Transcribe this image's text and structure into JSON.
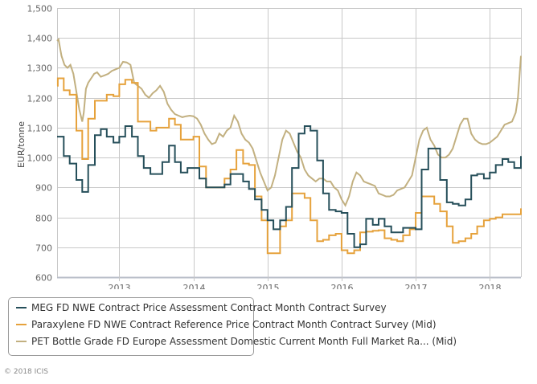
{
  "chart_data": {
    "type": "line",
    "title": "",
    "xlabel": "",
    "ylabel": "EUR/tonne",
    "ylim": [
      600,
      1500
    ],
    "yticks": [
      600,
      700,
      800,
      900,
      1000,
      1100,
      1200,
      1300,
      1400,
      1500
    ],
    "ytick_labels": [
      "600",
      "700",
      "800",
      "900",
      "1,000",
      "1,100",
      "1,200",
      "1,300",
      "1,400",
      "1,500"
    ],
    "xlim": [
      2012.16,
      2018.42
    ],
    "xticks": [
      2013,
      2014,
      2015,
      2016,
      2017,
      2018
    ],
    "xtick_labels": [
      "2013",
      "2014",
      "2015",
      "2016",
      "2017",
      "2018"
    ],
    "grid": true,
    "legend_position": "bottom",
    "series": [
      {
        "name": "MEG FD NWE Contract Price Assessment Contract Month Contract Survey",
        "color": "#264f5a",
        "step": true,
        "x": [
          2012.16,
          2012.25,
          2012.33,
          2012.42,
          2012.5,
          2012.58,
          2012.67,
          2012.75,
          2012.83,
          2012.92,
          2013.0,
          2013.08,
          2013.17,
          2013.25,
          2013.33,
          2013.42,
          2013.5,
          2013.58,
          2013.67,
          2013.75,
          2013.83,
          2013.92,
          2014.0,
          2014.08,
          2014.17,
          2014.25,
          2014.33,
          2014.42,
          2014.5,
          2014.58,
          2014.67,
          2014.75,
          2014.83,
          2014.92,
          2015.0,
          2015.08,
          2015.17,
          2015.25,
          2015.33,
          2015.42,
          2015.5,
          2015.58,
          2015.67,
          2015.75,
          2015.83,
          2015.92,
          2016.0,
          2016.08,
          2016.17,
          2016.25,
          2016.33,
          2016.42,
          2016.5,
          2016.58,
          2016.67,
          2016.75,
          2016.83,
          2016.92,
          2017.0,
          2017.08,
          2017.17,
          2017.25,
          2017.33,
          2017.42,
          2017.5,
          2017.58,
          2017.67,
          2017.75,
          2017.83,
          2017.92,
          2018.0,
          2018.08,
          2018.17,
          2018.25,
          2018.33,
          2018.42
        ],
        "values": [
          1070,
          1005,
          980,
          925,
          885,
          975,
          1075,
          1095,
          1070,
          1050,
          1070,
          1105,
          1070,
          1005,
          965,
          945,
          945,
          985,
          1040,
          985,
          950,
          965,
          965,
          930,
          900,
          900,
          900,
          910,
          945,
          945,
          920,
          895,
          860,
          825,
          790,
          760,
          790,
          835,
          965,
          1080,
          1105,
          1090,
          990,
          880,
          825,
          820,
          815,
          745,
          700,
          710,
          795,
          775,
          795,
          770,
          750,
          750,
          765,
          765,
          760,
          960,
          1030,
          1030,
          925,
          850,
          845,
          840,
          860,
          940,
          945,
          930,
          950,
          975,
          995,
          985,
          965,
          1005
        ]
      },
      {
        "name": "Paraxylene FD NWE Contract Reference Price Contract Month Contract Survey (Mid)",
        "color": "#e6a23c",
        "step": true,
        "x": [
          2012.16,
          2012.17,
          2012.25,
          2012.33,
          2012.42,
          2012.5,
          2012.58,
          2012.67,
          2012.75,
          2012.83,
          2012.92,
          2013.0,
          2013.08,
          2013.17,
          2013.25,
          2013.33,
          2013.42,
          2013.5,
          2013.58,
          2013.67,
          2013.75,
          2013.83,
          2013.92,
          2014.0,
          2014.08,
          2014.17,
          2014.25,
          2014.33,
          2014.42,
          2014.5,
          2014.58,
          2014.67,
          2014.75,
          2014.83,
          2014.92,
          2015.0,
          2015.08,
          2015.17,
          2015.25,
          2015.33,
          2015.42,
          2015.5,
          2015.58,
          2015.67,
          2015.75,
          2015.83,
          2015.92,
          2016.0,
          2016.08,
          2016.17,
          2016.25,
          2016.33,
          2016.42,
          2016.5,
          2016.58,
          2016.67,
          2016.75,
          2016.83,
          2016.92,
          2017.0,
          2017.08,
          2017.17,
          2017.25,
          2017.33,
          2017.42,
          2017.5,
          2017.58,
          2017.67,
          2017.75,
          2017.83,
          2017.92,
          2018.0,
          2018.08,
          2018.17,
          2018.25,
          2018.33,
          2018.42
        ],
        "values": [
          1240,
          1265,
          1225,
          1210,
          1090,
          995,
          1130,
          1190,
          1190,
          1210,
          1205,
          1245,
          1260,
          1250,
          1120,
          1120,
          1090,
          1100,
          1100,
          1130,
          1110,
          1060,
          1060,
          1070,
          970,
          900,
          900,
          900,
          930,
          960,
          1025,
          980,
          975,
          870,
          790,
          680,
          680,
          770,
          790,
          880,
          880,
          865,
          790,
          720,
          725,
          740,
          745,
          690,
          680,
          690,
          750,
          752,
          755,
          757,
          730,
          725,
          720,
          740,
          760,
          815,
          870,
          870,
          845,
          820,
          770,
          715,
          720,
          730,
          745,
          770,
          790,
          795,
          800,
          810,
          810,
          810,
          830
        ]
      },
      {
        "name": "PET Bottle Grade FD Europe Assessment Domestic Current Month Full Market Ra... (Mid)",
        "color": "#c2b080",
        "step": false,
        "x": [
          2012.16,
          2012.18,
          2012.22,
          2012.26,
          2012.3,
          2012.34,
          2012.38,
          2012.42,
          2012.46,
          2012.5,
          2012.52,
          2012.55,
          2012.58,
          2012.62,
          2012.66,
          2012.7,
          2012.75,
          2012.8,
          2012.85,
          2012.9,
          2012.95,
          2013.0,
          2013.05,
          2013.1,
          2013.15,
          2013.2,
          2013.25,
          2013.3,
          2013.35,
          2013.4,
          2013.45,
          2013.5,
          2013.55,
          2013.6,
          2013.65,
          2013.7,
          2013.75,
          2013.8,
          2013.85,
          2013.9,
          2013.95,
          2014.0,
          2014.05,
          2014.1,
          2014.15,
          2014.2,
          2014.25,
          2014.3,
          2014.35,
          2014.4,
          2014.45,
          2014.5,
          2014.55,
          2014.6,
          2014.65,
          2014.7,
          2014.75,
          2014.8,
          2014.85,
          2014.9,
          2014.95,
          2015.0,
          2015.05,
          2015.1,
          2015.15,
          2015.2,
          2015.25,
          2015.3,
          2015.35,
          2015.4,
          2015.45,
          2015.5,
          2015.55,
          2015.6,
          2015.65,
          2015.7,
          2015.75,
          2015.8,
          2015.85,
          2015.9,
          2015.95,
          2016.0,
          2016.05,
          2016.1,
          2016.15,
          2016.2,
          2016.25,
          2016.3,
          2016.35,
          2016.4,
          2016.45,
          2016.5,
          2016.55,
          2016.6,
          2016.65,
          2016.7,
          2016.75,
          2016.8,
          2016.85,
          2016.9,
          2016.95,
          2017.0,
          2017.05,
          2017.1,
          2017.15,
          2017.2,
          2017.25,
          2017.3,
          2017.35,
          2017.4,
          2017.45,
          2017.5,
          2017.55,
          2017.6,
          2017.65,
          2017.7,
          2017.75,
          2017.8,
          2017.85,
          2017.9,
          2017.95,
          2018.0,
          2018.05,
          2018.1,
          2018.15,
          2018.2,
          2018.25,
          2018.3,
          2018.35,
          2018.38,
          2018.4,
          2018.42
        ],
        "values": [
          1390,
          1395,
          1340,
          1310,
          1300,
          1310,
          1280,
          1220,
          1160,
          1120,
          1150,
          1230,
          1250,
          1265,
          1280,
          1285,
          1270,
          1275,
          1280,
          1290,
          1295,
          1300,
          1320,
          1318,
          1310,
          1250,
          1240,
          1230,
          1210,
          1200,
          1215,
          1225,
          1240,
          1220,
          1180,
          1160,
          1145,
          1140,
          1135,
          1138,
          1140,
          1138,
          1130,
          1110,
          1080,
          1060,
          1045,
          1050,
          1080,
          1070,
          1090,
          1100,
          1140,
          1120,
          1080,
          1060,
          1050,
          1030,
          990,
          950,
          920,
          890,
          900,
          940,
          1000,
          1060,
          1090,
          1080,
          1050,
          1020,
          1000,
          960,
          940,
          930,
          920,
          930,
          930,
          920,
          920,
          900,
          890,
          860,
          840,
          870,
          920,
          950,
          940,
          920,
          915,
          910,
          905,
          880,
          875,
          870,
          870,
          875,
          890,
          895,
          900,
          920,
          940,
          1000,
          1060,
          1090,
          1100,
          1060,
          1040,
          1010,
          1000,
          1000,
          1010,
          1030,
          1070,
          1110,
          1130,
          1130,
          1080,
          1060,
          1050,
          1045,
          1045,
          1050,
          1060,
          1070,
          1090,
          1110,
          1115,
          1120,
          1150,
          1200,
          1270,
          1340
        ]
      }
    ]
  },
  "legend": {
    "items": [
      {
        "label": "MEG FD NWE Contract Price Assessment Contract Month Contract Survey",
        "color": "#264f5a"
      },
      {
        "label": "Paraxylene FD NWE Contract Reference Price Contract Month Contract Survey (Mid)",
        "color": "#e6a23c"
      },
      {
        "label": "PET Bottle Grade FD Europe Assessment Domestic Current Month Full Market Ra... (Mid)",
        "color": "#c2b080"
      }
    ]
  },
  "footer": {
    "copyright": "© 2018 ICIS"
  },
  "colors": {
    "grid": "#c8c8c8",
    "axis": "#b8bec8",
    "text": "#666666"
  }
}
